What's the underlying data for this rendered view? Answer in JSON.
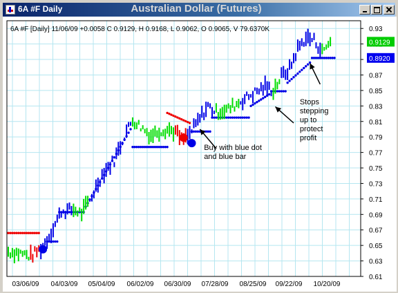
{
  "window": {
    "title": "6A #F Daily",
    "icon": "chart-app-icon",
    "buttons": [
      "minimize-icon",
      "maximize-icon",
      "close-icon"
    ]
  },
  "chart_data": {
    "type": "bar",
    "title": "Australian Dollar (Futures)",
    "info_line": "6A #F [Daily] 11/06/09 +0.0058 C 0.9129, H 0.9168, L 0.9062, O 0.9065, V 79.6370K",
    "xlabel": "",
    "ylabel": "",
    "ylim": [
      0.61,
      0.94
    ],
    "y_ticks": [
      "0.93",
      "0.91",
      "0.89",
      "0.87",
      "0.85",
      "0.83",
      "0.81",
      "0.79",
      "0.77",
      "0.75",
      "0.73",
      "0.71",
      "0.69",
      "0.67",
      "0.65",
      "0.63",
      "0.61"
    ],
    "x_ticks": [
      "03/06/09",
      "04/03/09",
      "05/04/09",
      "06/02/09",
      "06/30/09",
      "07/28/09",
      "08/25/09",
      "09/22/09",
      "10/20/09"
    ],
    "grid": true,
    "price_labels": [
      {
        "text": "0.9129",
        "value": 0.9129,
        "color": "#00cc00"
      },
      {
        "text": "0.8920",
        "value": 0.892,
        "color": "#0000ee"
      }
    ],
    "colors": {
      "up": "#0000e6",
      "neutral": "#00dd00",
      "down": "#ee0000",
      "grid": "#b4e6f0",
      "stop_up": "#0000e6",
      "stop_down": "#ee0000"
    },
    "signal_markers": [
      {
        "t": 17,
        "value": 0.645,
        "color": "#0000e6"
      },
      {
        "t": 86,
        "value": 0.789,
        "color": "#ee0000"
      },
      {
        "t": 90,
        "value": 0.782,
        "color": "#0000e6"
      }
    ],
    "annotations": [
      {
        "lines": [
          "Buy with blue dot",
          "and blue bar"
        ],
        "t": 96,
        "value": 0.773
      },
      {
        "lines": [
          "Stops",
          "stepping",
          "up to",
          "protect",
          "profit"
        ],
        "t": 143,
        "value": 0.832
      }
    ],
    "arrows": [
      {
        "from_t": 102,
        "from_v": 0.775,
        "to_t": 94,
        "to_v": 0.8
      },
      {
        "from_t": 140,
        "from_v": 0.808,
        "to_t": 131,
        "to_v": 0.829
      },
      {
        "from_t": 153,
        "from_v": 0.858,
        "to_t": 148,
        "to_v": 0.885
      }
    ],
    "bar_points": [
      [
        0,
        0.642,
        "g"
      ],
      [
        6,
        0.64,
        "g"
      ],
      [
        11,
        0.636,
        "r"
      ],
      [
        16,
        0.646,
        "b"
      ],
      [
        20,
        0.662,
        "b"
      ],
      [
        26,
        0.694,
        "b"
      ],
      [
        32,
        0.696,
        "g"
      ],
      [
        36,
        0.692,
        "g"
      ],
      [
        40,
        0.708,
        "b"
      ],
      [
        46,
        0.742,
        "b"
      ],
      [
        52,
        0.76,
        "b"
      ],
      [
        57,
        0.792,
        "b"
      ],
      [
        61,
        0.812,
        "g"
      ],
      [
        66,
        0.801,
        "g"
      ],
      [
        70,
        0.792,
        "g"
      ],
      [
        74,
        0.798,
        "g"
      ],
      [
        78,
        0.8,
        "g"
      ],
      [
        82,
        0.797,
        "r"
      ],
      [
        85,
        0.786,
        "r"
      ],
      [
        88,
        0.79,
        "b"
      ],
      [
        93,
        0.81,
        "b"
      ],
      [
        98,
        0.83,
        "b"
      ],
      [
        102,
        0.822,
        "g"
      ],
      [
        108,
        0.826,
        "g"
      ],
      [
        114,
        0.836,
        "b"
      ],
      [
        120,
        0.846,
        "b"
      ],
      [
        126,
        0.855,
        "b"
      ],
      [
        130,
        0.85,
        "g"
      ],
      [
        134,
        0.868,
        "b"
      ],
      [
        138,
        0.878,
        "b"
      ],
      [
        142,
        0.904,
        "b"
      ],
      [
        146,
        0.918,
        "b"
      ],
      [
        150,
        0.915,
        "b"
      ],
      [
        154,
        0.9,
        "g"
      ],
      [
        158,
        0.913,
        "g"
      ]
    ],
    "stop_segments": [
      {
        "color": "#ee0000",
        "from_t": 0,
        "to_t": 15,
        "value": 0.666
      },
      {
        "color": "#0000e6",
        "from_t": 19,
        "to_t": 24,
        "value": 0.655
      },
      {
        "color": "#0000e6",
        "from_t": 25,
        "to_t": 37,
        "value": 0.693
      },
      {
        "color": "#0000e6",
        "from_t": 38,
        "to_t": 60,
        "value": 0.7,
        "slope_to": 0.8
      },
      {
        "color": "#0000e6",
        "from_t": 61,
        "to_t": 78,
        "value": 0.777
      },
      {
        "color": "#ee0000",
        "from_t": 78,
        "to_t": 89,
        "value": 0.821,
        "slope_to": 0.808
      },
      {
        "color": "#0000e6",
        "from_t": 90,
        "to_t": 99,
        "value": 0.797
      },
      {
        "color": "#0000e6",
        "from_t": 100,
        "to_t": 118,
        "value": 0.815
      },
      {
        "color": "#0000e6",
        "from_t": 119,
        "to_t": 128,
        "value": 0.83,
        "slope_to": 0.845
      },
      {
        "color": "#0000e6",
        "from_t": 129,
        "to_t": 136,
        "value": 0.849
      },
      {
        "color": "#0000e6",
        "from_t": 137,
        "to_t": 148,
        "value": 0.86,
        "slope_to": 0.886
      },
      {
        "color": "#0000e6",
        "from_t": 149,
        "to_t": 160,
        "value": 0.892
      }
    ]
  }
}
